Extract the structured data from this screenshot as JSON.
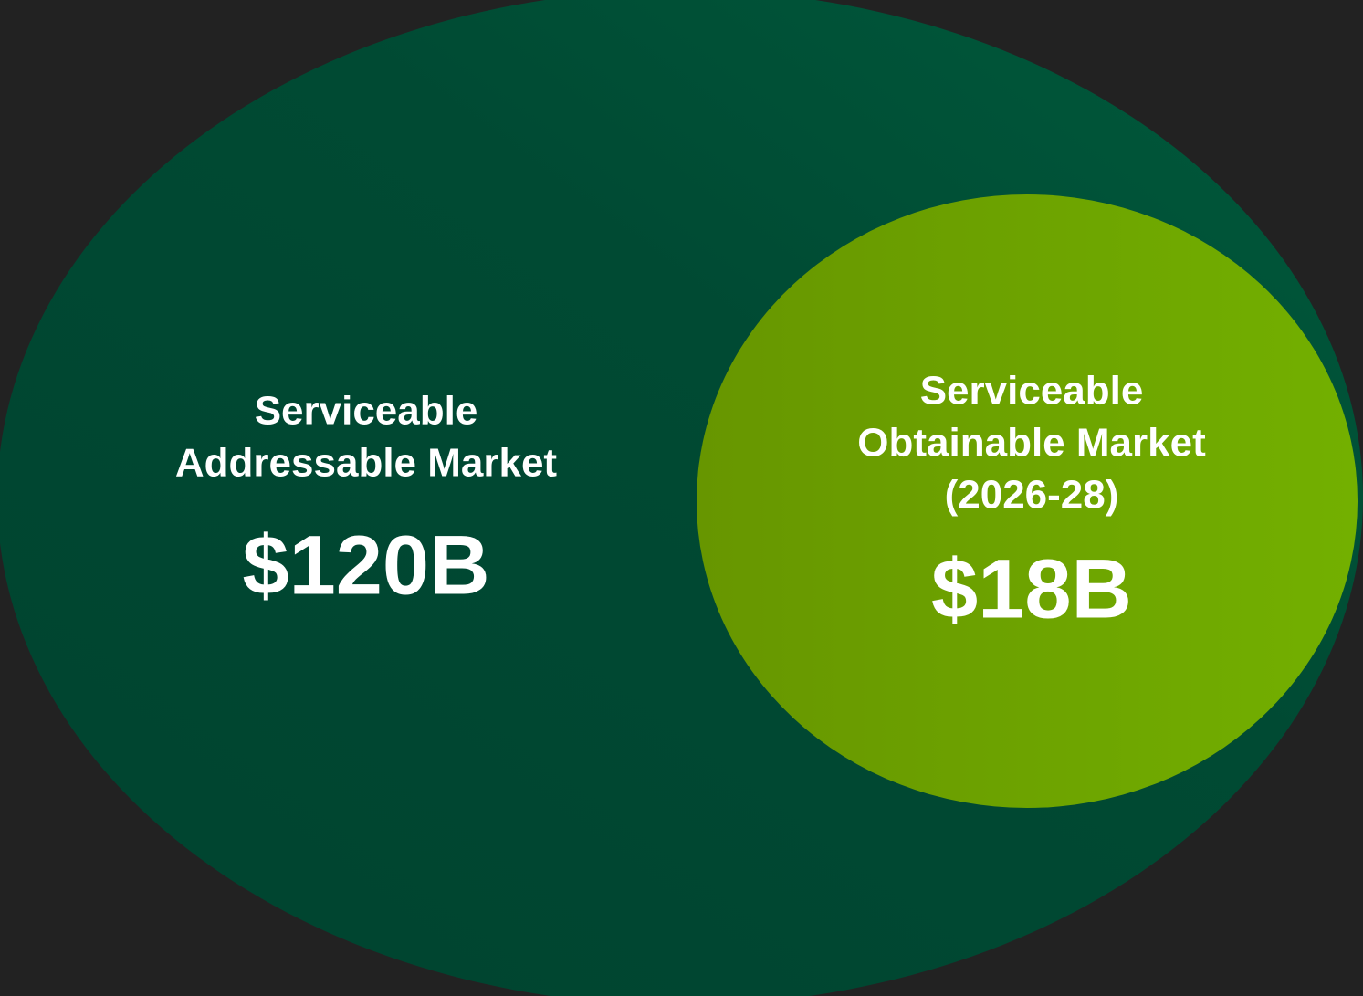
{
  "circles": [
    {
      "label_lines": [
        "Serviceable",
        "Addressable Market"
      ],
      "value": "$120B"
    },
    {
      "label_lines": [
        "Serviceable",
        "Obtainable Market",
        "(2026-28)"
      ],
      "value": "$18B"
    }
  ]
}
